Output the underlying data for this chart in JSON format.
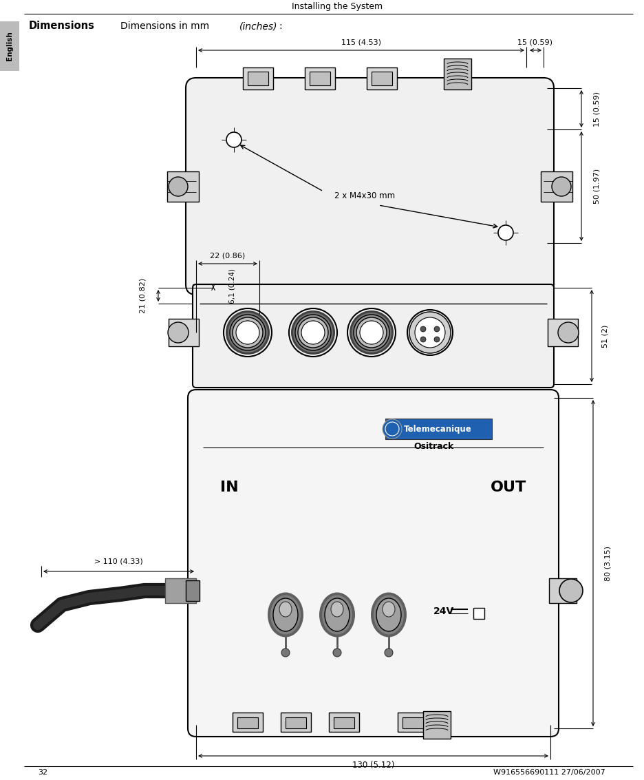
{
  "title_header": "Installing the System",
  "page_number": "32",
  "doc_number": "W916556690111 27/06/2007",
  "section_label": "Dimensions",
  "sidebar_label": "English",
  "bg_color": "#ffffff",
  "line_color": "#000000",
  "gray_fill": "#e8e8e8",
  "light_gray": "#f0f0f0",
  "dark_gray": "#888888",
  "dim_top_width": "115 (4.53)",
  "dim_top_right": "15 (0.59)",
  "dim_right_top": "15 (0.59)",
  "dim_right_mid": "50 (1.97)",
  "dim_side_h": "51 (2)",
  "dim_left1": "21 (0.82)",
  "dim_left2": "6,1 (0.24)",
  "dim_center": "22 (0.86)",
  "dim_bottom": "130 (5.12)",
  "dim_cable": "> 110 (4.33)",
  "dim_front_h": "80 (3.15)",
  "dim_mounting": "2 x M4x30 mm",
  "brand": "Telemecanique",
  "product": "Ositrack",
  "label_in": "IN",
  "label_out": "OUT",
  "label_24v": "24V"
}
